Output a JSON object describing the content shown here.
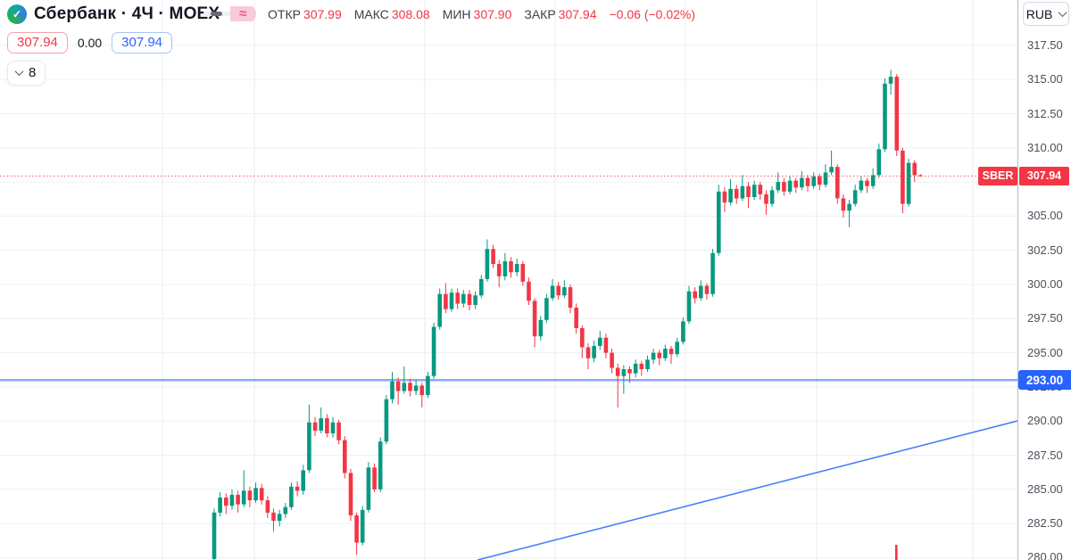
{
  "colors": {
    "up": "#089981",
    "down": "#f23645",
    "accent_blue": "#2962ff",
    "label_red": "#f23645",
    "grid": "#e9f0f6"
  },
  "header": {
    "logo_glyph": "✓",
    "symbol_title": "Сбербанк · 4Ч · MOEX",
    "toggle_right_glyph": "≈",
    "stats": [
      {
        "label": "ОТКР",
        "value": "307.99"
      },
      {
        "label": "МАКС",
        "value": "308.08"
      },
      {
        "label": "МИН",
        "value": "307.90"
      },
      {
        "label": "ЗАКР",
        "value": "307.94"
      }
    ],
    "change": "−0.06 (−0.02%)"
  },
  "quote_row": {
    "sell": "307.94",
    "spread": "0.00",
    "buy": "307.94"
  },
  "object_tree_button": {
    "count": "8"
  },
  "price_axis": {
    "currency": "RUB",
    "ticks": [
      "317.50",
      "315.00",
      "312.50",
      "310.00",
      "307.50",
      "305.00",
      "302.50",
      "300.00",
      "297.50",
      "295.00",
      "292.50",
      "290.00",
      "287.50",
      "285.00",
      "282.50",
      "280.00"
    ],
    "last_price_label": {
      "symbol": "SBER",
      "price": "307.94"
    },
    "level_label": "293.00"
  },
  "chart_data": {
    "type": "candlestick",
    "title": "Сбербанк · 4Ч · MOEX",
    "ylabel": "RUB",
    "ylim": [
      279.85,
      320.85
    ],
    "grid": true,
    "legend_position": "none",
    "levels": {
      "support_line": 293.0,
      "last_price": 307.94
    },
    "ohlc": [
      [
        279.9,
        283.6,
        279.7,
        283.3
      ],
      [
        283.3,
        284.8,
        283.0,
        284.4
      ],
      [
        284.4,
        284.7,
        283.2,
        283.8
      ],
      [
        283.8,
        285.0,
        283.5,
        284.6
      ],
      [
        284.6,
        284.9,
        283.3,
        283.9
      ],
      [
        283.9,
        286.4,
        283.7,
        284.9
      ],
      [
        284.9,
        285.2,
        283.7,
        284.2
      ],
      [
        284.2,
        285.5,
        284.0,
        285.1
      ],
      [
        285.1,
        285.4,
        283.9,
        284.2
      ],
      [
        284.2,
        284.5,
        282.9,
        283.3
      ],
      [
        283.3,
        283.6,
        281.9,
        282.7
      ],
      [
        282.7,
        283.5,
        282.3,
        283.2
      ],
      [
        283.2,
        284.0,
        282.9,
        283.7
      ],
      [
        283.7,
        285.5,
        283.5,
        285.2
      ],
      [
        285.2,
        285.6,
        284.5,
        284.9
      ],
      [
        284.9,
        286.8,
        284.6,
        286.4
      ],
      [
        286.4,
        291.2,
        286.2,
        289.9
      ],
      [
        289.9,
        290.3,
        288.9,
        289.3
      ],
      [
        289.3,
        291.0,
        289.1,
        290.2
      ],
      [
        290.2,
        290.5,
        288.8,
        289.1
      ],
      [
        289.1,
        290.3,
        288.8,
        289.9
      ],
      [
        289.9,
        290.1,
        288.3,
        288.6
      ],
      [
        288.6,
        288.9,
        285.8,
        286.2
      ],
      [
        286.2,
        286.5,
        282.7,
        283.1
      ],
      [
        283.1,
        283.3,
        280.2,
        281.1
      ],
      [
        281.1,
        283.8,
        280.9,
        283.5
      ],
      [
        283.5,
        287.0,
        283.3,
        286.6
      ],
      [
        286.6,
        286.9,
        284.8,
        285.0
      ],
      [
        285.0,
        288.8,
        284.8,
        288.5
      ],
      [
        288.5,
        291.9,
        288.3,
        291.6
      ],
      [
        291.6,
        293.6,
        291.3,
        292.9
      ],
      [
        292.9,
        293.2,
        291.2,
        292.2
      ],
      [
        292.2,
        294.0,
        292.0,
        292.8
      ],
      [
        292.8,
        293.1,
        291.8,
        292.2
      ],
      [
        292.2,
        293.0,
        291.9,
        292.6
      ],
      [
        292.6,
        292.8,
        291.0,
        291.9
      ],
      [
        291.9,
        293.6,
        291.7,
        293.3
      ],
      [
        293.3,
        297.2,
        293.1,
        296.9
      ],
      [
        296.9,
        299.7,
        296.7,
        299.3
      ],
      [
        299.3,
        300.1,
        297.9,
        298.2
      ],
      [
        298.2,
        299.7,
        298.0,
        299.4
      ],
      [
        299.4,
        299.7,
        298.2,
        298.6
      ],
      [
        298.6,
        299.6,
        298.3,
        299.3
      ],
      [
        299.3,
        299.6,
        298.1,
        298.5
      ],
      [
        298.5,
        299.5,
        298.2,
        299.2
      ],
      [
        299.2,
        300.7,
        299.0,
        300.4
      ],
      [
        300.4,
        303.3,
        300.2,
        302.6
      ],
      [
        302.6,
        302.9,
        301.2,
        301.5
      ],
      [
        301.5,
        301.8,
        299.8,
        300.6
      ],
      [
        300.6,
        302.3,
        300.3,
        301.7
      ],
      [
        301.7,
        302.0,
        300.5,
        300.9
      ],
      [
        300.9,
        301.9,
        300.6,
        301.5
      ],
      [
        301.5,
        301.7,
        299.9,
        300.2
      ],
      [
        300.2,
        300.5,
        298.5,
        298.8
      ],
      [
        298.8,
        299.0,
        295.4,
        296.2
      ],
      [
        296.2,
        297.7,
        295.9,
        297.4
      ],
      [
        297.4,
        299.3,
        297.2,
        299.0
      ],
      [
        299.0,
        300.4,
        298.8,
        299.9
      ],
      [
        299.9,
        300.2,
        298.9,
        299.2
      ],
      [
        299.2,
        300.3,
        299.0,
        299.8
      ],
      [
        299.8,
        300.0,
        297.9,
        298.3
      ],
      [
        298.3,
        298.6,
        296.4,
        296.8
      ],
      [
        296.8,
        297.0,
        294.6,
        295.4
      ],
      [
        295.4,
        295.7,
        293.8,
        294.6
      ],
      [
        294.6,
        295.9,
        294.3,
        295.5
      ],
      [
        295.5,
        296.6,
        295.2,
        296.1
      ],
      [
        296.1,
        296.4,
        294.6,
        295.0
      ],
      [
        295.0,
        295.3,
        293.5,
        293.9
      ],
      [
        293.9,
        294.2,
        291.0,
        293.3
      ],
      [
        293.3,
        294.1,
        292.0,
        293.8
      ],
      [
        293.8,
        294.0,
        292.8,
        293.5
      ],
      [
        293.5,
        294.5,
        293.2,
        294.2
      ],
      [
        294.2,
        294.4,
        293.3,
        293.8
      ],
      [
        293.8,
        294.8,
        293.6,
        294.5
      ],
      [
        294.5,
        295.3,
        294.2,
        295.0
      ],
      [
        295.0,
        295.2,
        294.1,
        294.6
      ],
      [
        294.6,
        295.6,
        294.4,
        295.3
      ],
      [
        295.3,
        295.5,
        294.2,
        294.9
      ],
      [
        294.9,
        296.1,
        294.7,
        295.8
      ],
      [
        295.8,
        297.6,
        295.6,
        297.3
      ],
      [
        297.3,
        299.9,
        297.1,
        299.5
      ],
      [
        299.5,
        299.8,
        298.6,
        299.0
      ],
      [
        299.0,
        300.3,
        298.8,
        299.9
      ],
      [
        299.9,
        300.1,
        298.9,
        299.3
      ],
      [
        299.3,
        302.6,
        299.1,
        302.3
      ],
      [
        302.3,
        307.3,
        302.1,
        306.8
      ],
      [
        306.8,
        307.1,
        305.3,
        306.0
      ],
      [
        306.0,
        307.7,
        305.8,
        307.0
      ],
      [
        307.0,
        307.3,
        305.9,
        306.3
      ],
      [
        306.3,
        308.0,
        306.1,
        307.2
      ],
      [
        307.2,
        307.5,
        305.6,
        306.4
      ],
      [
        306.4,
        307.6,
        306.2,
        307.3
      ],
      [
        307.3,
        307.5,
        306.2,
        306.6
      ],
      [
        306.6,
        306.9,
        305.1,
        305.9
      ],
      [
        305.9,
        307.2,
        305.7,
        306.9
      ],
      [
        306.9,
        308.2,
        306.7,
        307.5
      ],
      [
        307.5,
        307.8,
        306.5,
        306.8
      ],
      [
        306.8,
        307.9,
        306.6,
        307.6
      ],
      [
        307.6,
        307.8,
        306.7,
        307.1
      ],
      [
        307.1,
        308.3,
        306.9,
        307.8
      ],
      [
        307.8,
        308.0,
        306.8,
        307.2
      ],
      [
        307.2,
        308.2,
        307.0,
        307.9
      ],
      [
        307.9,
        308.1,
        306.9,
        307.3
      ],
      [
        307.3,
        308.8,
        307.1,
        308.2
      ],
      [
        308.2,
        309.8,
        308.0,
        308.6
      ],
      [
        308.6,
        308.8,
        305.9,
        306.3
      ],
      [
        306.3,
        306.6,
        304.9,
        305.4
      ],
      [
        305.4,
        306.2,
        304.2,
        305.9
      ],
      [
        305.9,
        307.3,
        305.7,
        306.9
      ],
      [
        306.9,
        307.9,
        306.7,
        307.6
      ],
      [
        307.6,
        307.8,
        306.7,
        307.2
      ],
      [
        307.2,
        308.5,
        307.0,
        308.0
      ],
      [
        308.0,
        310.3,
        307.8,
        309.9
      ],
      [
        309.9,
        315.1,
        309.7,
        314.7
      ],
      [
        314.7,
        315.7,
        313.9,
        315.2
      ],
      [
        315.2,
        315.4,
        309.4,
        309.8
      ],
      [
        309.8,
        310.0,
        305.2,
        305.9
      ],
      [
        305.9,
        309.2,
        305.7,
        308.9
      ],
      [
        308.9,
        309.1,
        307.5,
        308.0
      ],
      [
        307.99,
        308.08,
        307.9,
        307.94
      ]
    ]
  }
}
